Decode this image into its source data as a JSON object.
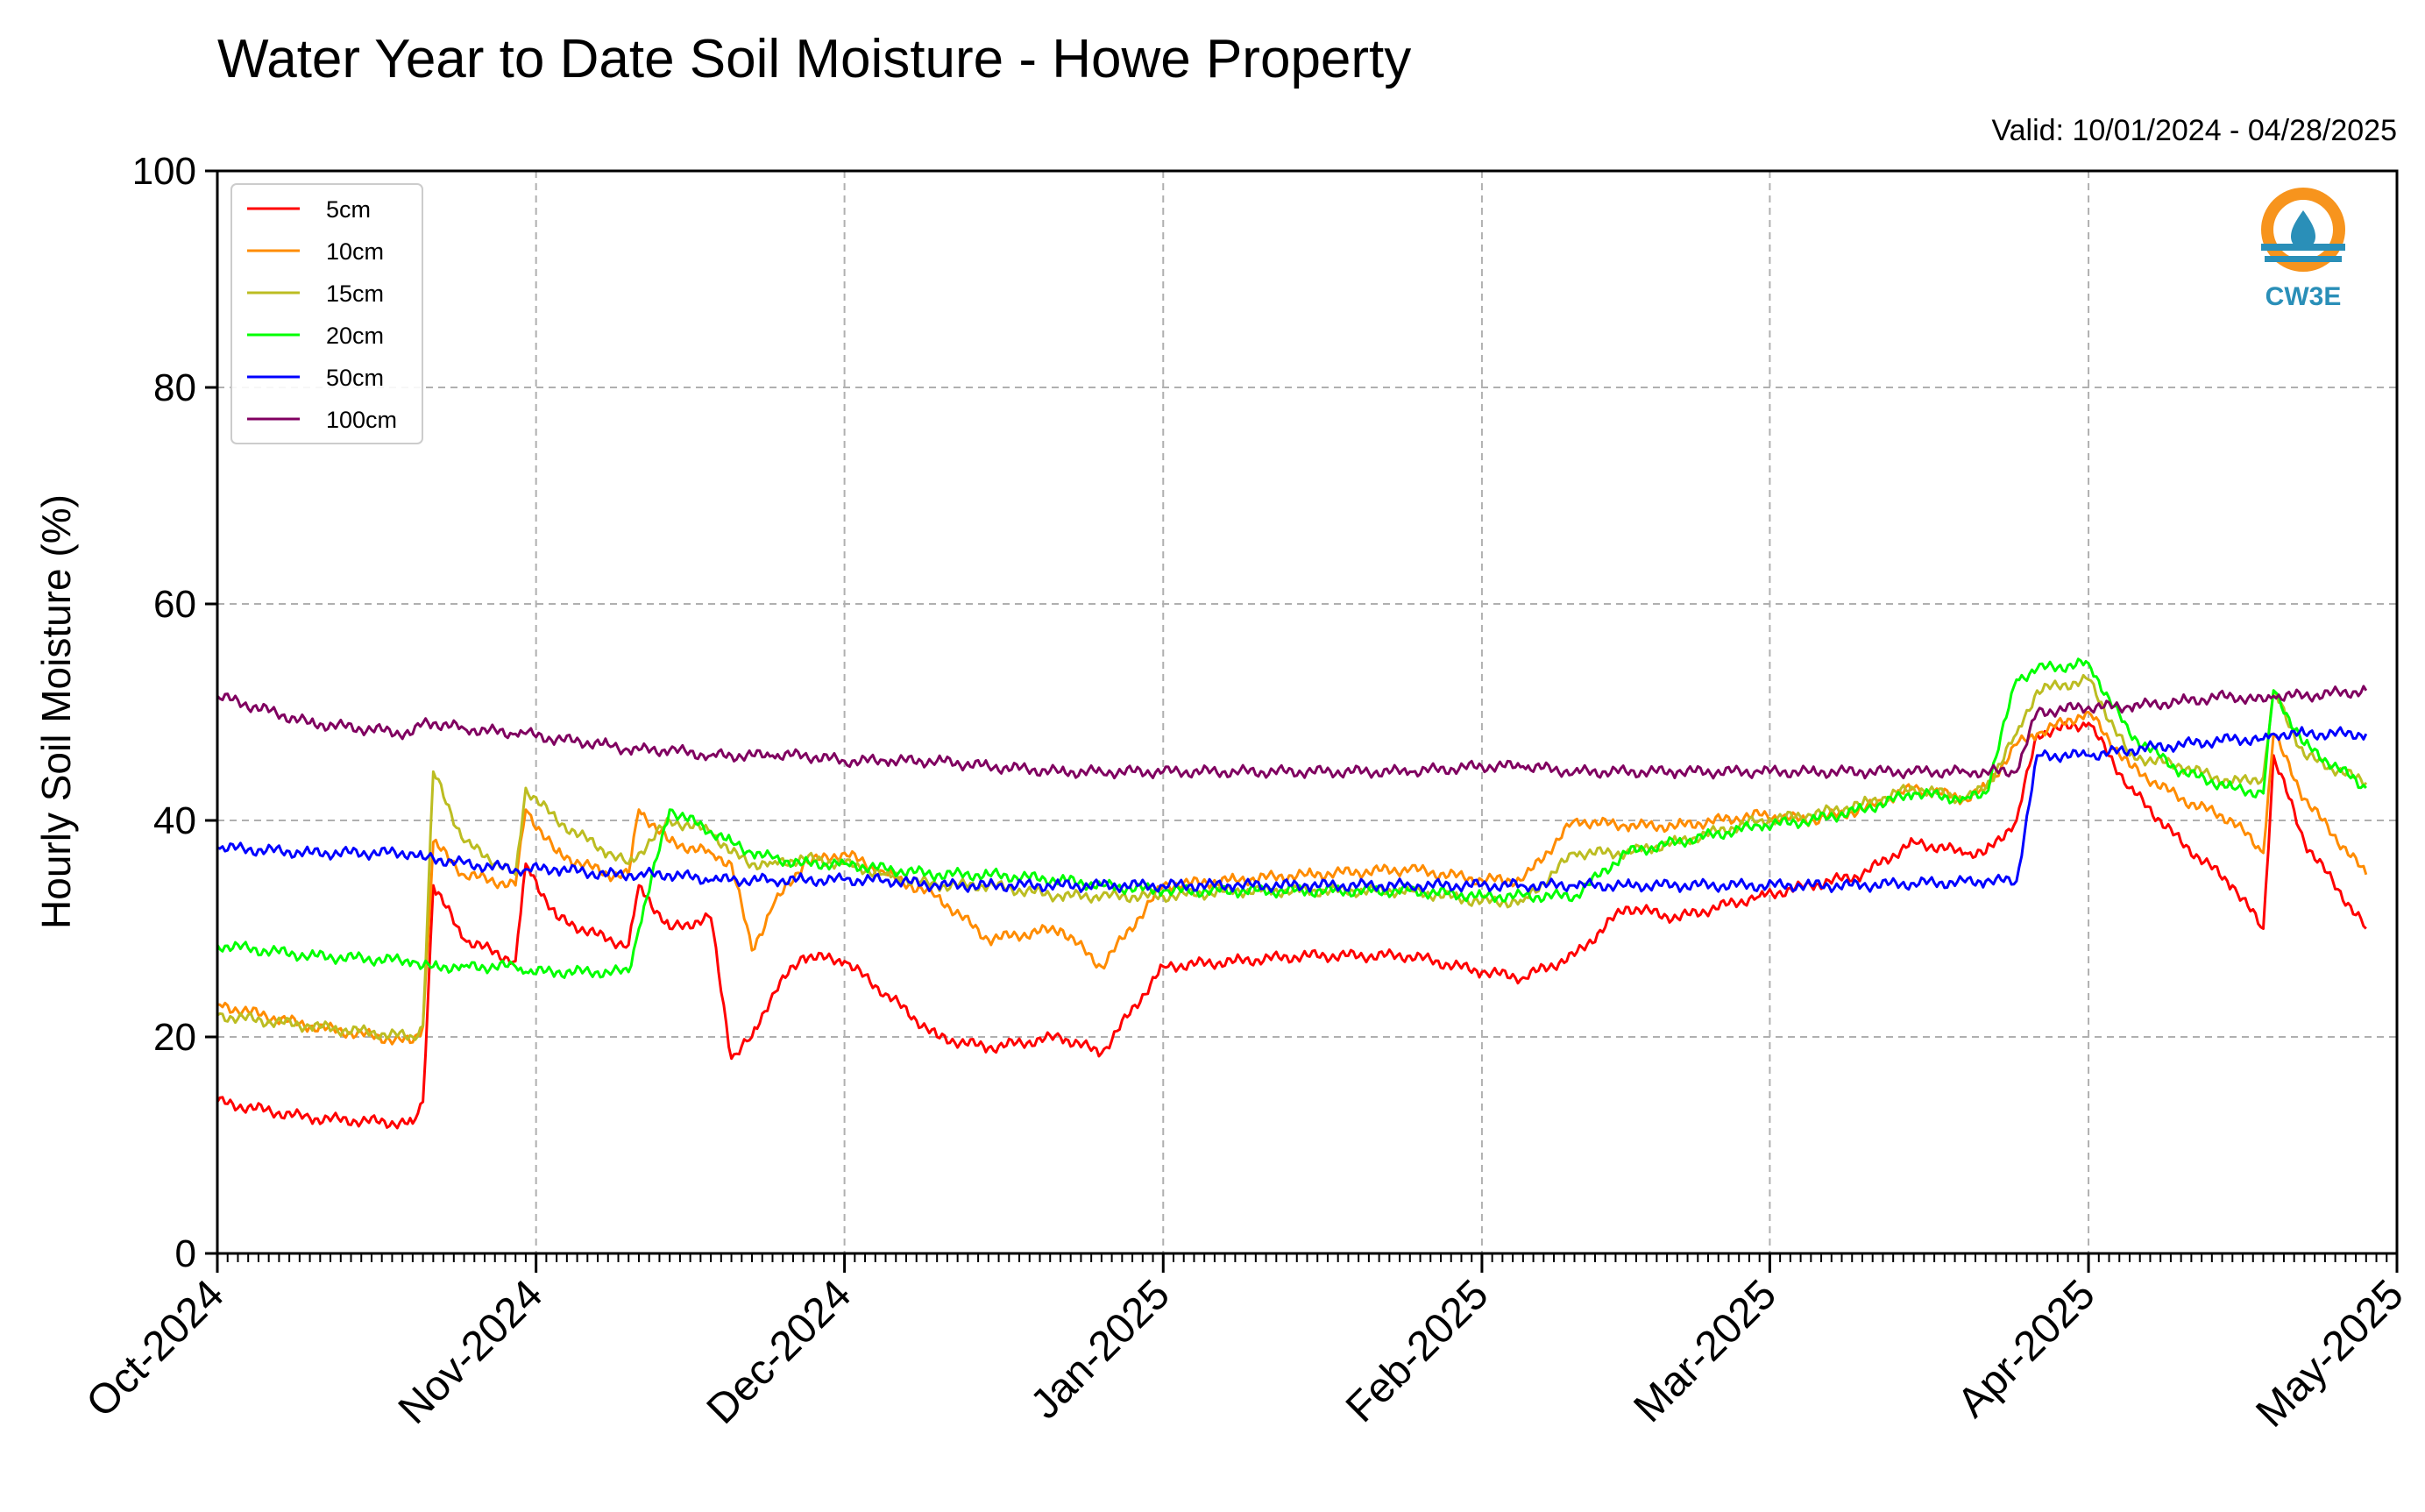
{
  "chart_data": {
    "type": "line",
    "title": "Water Year to Date Soil Moisture - Howe Property",
    "subtitle": "Valid: 10/01/2024 - 04/28/2025",
    "xlabel": "",
    "ylabel": "Hourly Soil Moisture (%)",
    "ylim": [
      0,
      100
    ],
    "xlim": [
      "2024-10-01",
      "2025-05-01"
    ],
    "y_ticks": [
      "0",
      "20",
      "40",
      "60",
      "80",
      "100"
    ],
    "x_ticks": [
      {
        "date": "2024-10-01",
        "label": "Oct-2024"
      },
      {
        "date": "2024-11-01",
        "label": "Nov-2024"
      },
      {
        "date": "2024-12-01",
        "label": "Dec-2024"
      },
      {
        "date": "2025-01-01",
        "label": "Jan-2025"
      },
      {
        "date": "2025-02-01",
        "label": "Feb-2025"
      },
      {
        "date": "2025-03-01",
        "label": "Mar-2025"
      },
      {
        "date": "2025-04-01",
        "label": "Apr-2025"
      },
      {
        "date": "2025-05-01",
        "label": "May-2025"
      }
    ],
    "grid": true,
    "legend_position": "top-left",
    "logo_text": "CW3E",
    "series": [
      {
        "name": "5cm",
        "color": "#ff0000",
        "x": [
          "2024-10-01",
          "2024-10-10",
          "2024-10-20",
          "2024-10-21",
          "2024-10-22",
          "2024-10-25",
          "2024-10-30",
          "2024-10-31",
          "2024-11-03",
          "2024-11-08",
          "2024-11-10",
          "2024-11-11",
          "2024-11-14",
          "2024-11-18",
          "2024-11-20",
          "2024-11-22",
          "2024-11-24",
          "2024-11-27",
          "2024-12-01",
          "2024-12-05",
          "2024-12-10",
          "2024-12-15",
          "2024-12-22",
          "2024-12-26",
          "2025-01-01",
          "2025-01-08",
          "2025-01-15",
          "2025-01-25",
          "2025-02-01",
          "2025-02-05",
          "2025-02-10",
          "2025-02-15",
          "2025-02-20",
          "2025-02-28",
          "2025-03-05",
          "2025-03-10",
          "2025-03-15",
          "2025-03-20",
          "2025-03-22",
          "2025-03-25",
          "2025-03-27",
          "2025-04-01",
          "2025-04-05",
          "2025-04-10",
          "2025-04-15",
          "2025-04-18",
          "2025-04-19",
          "2025-04-22",
          "2025-04-28"
        ],
        "values": [
          14,
          12.5,
          12,
          14,
          34,
          29,
          27,
          36,
          31,
          29,
          28.5,
          34,
          30,
          31,
          18,
          20,
          24,
          27.5,
          27,
          24,
          20,
          19,
          20,
          18.5,
          26.5,
          27,
          27.5,
          27.5,
          26,
          25.5,
          27.5,
          32,
          31,
          33,
          34,
          35,
          38,
          37,
          37,
          40,
          48,
          49,
          43,
          38,
          34,
          30,
          46,
          38,
          30
        ]
      },
      {
        "name": "10cm",
        "color": "#ff8c00",
        "x": [
          "2024-10-01",
          "2024-10-10",
          "2024-10-20",
          "2024-10-21",
          "2024-10-22",
          "2024-10-25",
          "2024-10-30",
          "2024-10-31",
          "2024-11-03",
          "2024-11-08",
          "2024-11-10",
          "2024-11-11",
          "2024-11-14",
          "2024-11-18",
          "2024-11-20",
          "2024-11-22",
          "2024-11-24",
          "2024-11-27",
          "2024-12-01",
          "2024-12-05",
          "2024-12-10",
          "2024-12-15",
          "2024-12-22",
          "2024-12-26",
          "2025-01-01",
          "2025-01-08",
          "2025-01-15",
          "2025-01-25",
          "2025-02-01",
          "2025-02-05",
          "2025-02-10",
          "2025-02-15",
          "2025-02-20",
          "2025-02-28",
          "2025-03-05",
          "2025-03-10",
          "2025-03-15",
          "2025-03-20",
          "2025-03-22",
          "2025-03-25",
          "2025-03-27",
          "2025-04-01",
          "2025-04-05",
          "2025-04-10",
          "2025-04-15",
          "2025-04-18",
          "2025-04-19",
          "2025-04-22",
          "2025-04-28"
        ],
        "values": [
          23,
          21,
          19.5,
          21,
          38,
          35,
          34,
          41,
          37,
          35,
          35,
          41,
          38,
          37,
          36,
          28,
          32,
          36,
          37,
          35,
          33,
          29,
          30,
          26.5,
          34,
          34.5,
          35,
          35.5,
          34.5,
          34.5,
          40,
          39.5,
          39.5,
          40.5,
          40,
          41,
          43,
          42,
          43,
          47,
          48,
          50,
          45,
          42,
          40,
          37,
          48,
          42,
          35
        ]
      },
      {
        "name": "15cm",
        "color": "#bcbd22",
        "x": [
          "2024-10-01",
          "2024-10-10",
          "2024-10-20",
          "2024-10-21",
          "2024-10-22",
          "2024-10-25",
          "2024-10-30",
          "2024-10-31",
          "2024-11-03",
          "2024-11-08",
          "2024-11-10",
          "2024-11-11",
          "2024-11-14",
          "2024-11-18",
          "2024-11-20",
          "2024-11-22",
          "2024-11-24",
          "2024-11-27",
          "2024-12-01",
          "2024-12-05",
          "2024-12-10",
          "2024-12-15",
          "2024-12-22",
          "2024-12-26",
          "2025-01-01",
          "2025-01-08",
          "2025-01-15",
          "2025-01-25",
          "2025-02-01",
          "2025-02-05",
          "2025-02-10",
          "2025-02-15",
          "2025-02-20",
          "2025-02-28",
          "2025-03-05",
          "2025-03-10",
          "2025-03-15",
          "2025-03-20",
          "2025-03-22",
          "2025-03-25",
          "2025-03-27",
          "2025-04-01",
          "2025-04-05",
          "2025-04-10",
          "2025-04-15",
          "2025-04-18",
          "2025-04-19",
          "2025-04-22",
          "2025-04-28"
        ],
        "values": [
          22,
          21,
          20,
          21,
          44.5,
          38,
          35,
          43,
          40,
          37,
          36,
          37,
          40,
          39,
          37,
          36,
          36,
          36.5,
          36,
          35,
          34,
          34,
          33,
          33,
          33,
          33.5,
          33.5,
          33.5,
          32.5,
          32.5,
          37,
          37,
          38,
          40,
          40.5,
          41.5,
          43,
          42,
          43,
          48,
          52,
          53,
          46,
          45,
          43.5,
          44,
          52,
          46,
          43.5
        ]
      },
      {
        "name": "20cm",
        "color": "#00ff00",
        "x": [
          "2024-10-01",
          "2024-10-10",
          "2024-10-20",
          "2024-10-21",
          "2024-10-22",
          "2024-10-25",
          "2024-10-30",
          "2024-10-31",
          "2024-11-03",
          "2024-11-08",
          "2024-11-10",
          "2024-11-11",
          "2024-11-14",
          "2024-11-18",
          "2024-11-20",
          "2024-11-22",
          "2024-11-24",
          "2024-11-27",
          "2024-12-01",
          "2024-12-05",
          "2024-12-10",
          "2024-12-15",
          "2024-12-22",
          "2024-12-26",
          "2025-01-01",
          "2025-01-08",
          "2025-01-15",
          "2025-01-25",
          "2025-02-01",
          "2025-02-05",
          "2025-02-10",
          "2025-02-15",
          "2025-02-20",
          "2025-02-28",
          "2025-03-05",
          "2025-03-10",
          "2025-03-15",
          "2025-03-20",
          "2025-03-22",
          "2025-03-25",
          "2025-03-27",
          "2025-04-01",
          "2025-04-05",
          "2025-04-10",
          "2025-04-15",
          "2025-04-18",
          "2025-04-19",
          "2025-04-22",
          "2025-04-28"
        ],
        "values": [
          28.5,
          27.5,
          27,
          26.5,
          26.5,
          26.5,
          26.5,
          26,
          26,
          26,
          26,
          30,
          41,
          39,
          38,
          37,
          36.5,
          36,
          36,
          35.5,
          35,
          35,
          34.5,
          34,
          33.5,
          33.5,
          33.5,
          33.5,
          33,
          33,
          33,
          37,
          38,
          39.5,
          40,
          41,
          42.5,
          42,
          42.5,
          53,
          54,
          54.5,
          48,
          44.5,
          43,
          42.5,
          52,
          47,
          43
        ]
      },
      {
        "name": "50cm",
        "color": "#0000ff",
        "x": [
          "2024-10-01",
          "2024-10-10",
          "2024-10-20",
          "2024-10-21",
          "2024-10-22",
          "2024-10-25",
          "2024-10-30",
          "2024-10-31",
          "2024-11-03",
          "2024-11-08",
          "2024-11-10",
          "2024-11-11",
          "2024-11-14",
          "2024-11-18",
          "2024-11-20",
          "2024-11-22",
          "2024-11-24",
          "2024-11-27",
          "2024-12-01",
          "2024-12-05",
          "2024-12-10",
          "2024-12-15",
          "2024-12-22",
          "2024-12-26",
          "2025-01-01",
          "2025-01-08",
          "2025-01-15",
          "2025-01-25",
          "2025-02-01",
          "2025-02-05",
          "2025-02-10",
          "2025-02-15",
          "2025-02-20",
          "2025-02-28",
          "2025-03-05",
          "2025-03-10",
          "2025-03-15",
          "2025-03-20",
          "2025-03-22",
          "2025-03-25",
          "2025-03-27",
          "2025-04-01",
          "2025-04-05",
          "2025-04-10",
          "2025-04-15",
          "2025-04-18",
          "2025-04-19",
          "2025-04-22",
          "2025-04-28"
        ],
        "values": [
          37.5,
          37,
          37,
          36.5,
          36.5,
          36,
          35.5,
          35.5,
          35.5,
          35,
          35,
          35,
          35,
          34.5,
          34.5,
          34.5,
          34.5,
          34.5,
          34.5,
          34.5,
          34,
          34,
          34,
          34,
          34,
          34,
          34,
          34,
          34,
          34,
          34,
          34,
          34,
          34,
          34,
          34,
          34.2,
          34.3,
          34.4,
          34.4,
          46,
          46,
          46.5,
          47,
          47.5,
          47.5,
          48,
          48,
          48
        ]
      },
      {
        "name": "100cm",
        "color": "#800060",
        "x": [
          "2024-10-01",
          "2024-10-10",
          "2024-10-20",
          "2024-10-21",
          "2024-10-22",
          "2024-10-25",
          "2024-10-30",
          "2024-10-31",
          "2024-11-03",
          "2024-11-08",
          "2024-11-10",
          "2024-11-11",
          "2024-11-14",
          "2024-11-18",
          "2024-11-20",
          "2024-11-22",
          "2024-11-24",
          "2024-11-27",
          "2024-12-01",
          "2024-12-05",
          "2024-12-10",
          "2024-12-15",
          "2024-12-22",
          "2024-12-26",
          "2025-01-01",
          "2025-01-08",
          "2025-01-15",
          "2025-01-25",
          "2025-02-01",
          "2025-02-05",
          "2025-02-10",
          "2025-02-15",
          "2025-02-20",
          "2025-02-28",
          "2025-03-05",
          "2025-03-10",
          "2025-03-15",
          "2025-03-20",
          "2025-03-22",
          "2025-03-25",
          "2025-03-27",
          "2025-04-01",
          "2025-04-05",
          "2025-04-10",
          "2025-04-15",
          "2025-04-18",
          "2025-04-19",
          "2025-04-22",
          "2025-04-28"
        ],
        "values": [
          51.5,
          49,
          48,
          49,
          49,
          48.5,
          48,
          48,
          47.5,
          47,
          46.5,
          46.5,
          46.5,
          46,
          46,
          46,
          46,
          46,
          45.5,
          45.5,
          45.5,
          45,
          44.5,
          44.5,
          44.5,
          44.5,
          44.5,
          44.5,
          45,
          45,
          44.5,
          44.5,
          44.5,
          44.5,
          44.5,
          44.5,
          44.5,
          44.5,
          44.5,
          44.5,
          50,
          50.5,
          50.5,
          51,
          51.5,
          51,
          51.5,
          51.5,
          52
        ]
      }
    ]
  }
}
